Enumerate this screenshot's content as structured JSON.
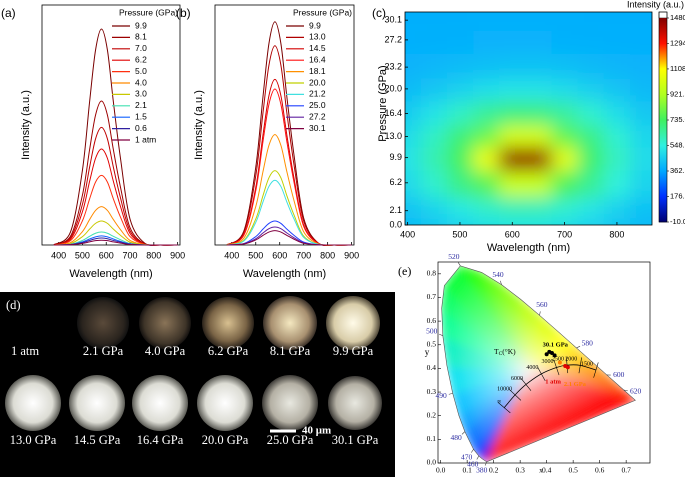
{
  "chart_data": [
    {
      "type": "line",
      "label": "(a)",
      "xlabel": "Wavelength (nm)",
      "ylabel": "Intensity (a.u.)",
      "legend_title": "Pressure (GPa)",
      "x": [
        380,
        450,
        500,
        530,
        555,
        580,
        605,
        630,
        660,
        700,
        760,
        830,
        900
      ],
      "xlim": [
        330,
        910
      ],
      "xticks": [
        400,
        500,
        600,
        700,
        800,
        900
      ],
      "ylim": [
        0,
        100
      ],
      "series": [
        {
          "name": "9.9",
          "color": "#7a0000",
          "values": [
            0.1,
            5.5,
            31.2,
            59.6,
            81.2,
            90,
            81.2,
            59.6,
            36,
            10.8,
            0.9,
            0,
            0
          ]
        },
        {
          "name": "8.1",
          "color": "#9c0000",
          "values": [
            0.1,
            3.7,
            20.8,
            39.7,
            54.1,
            60,
            54.1,
            39.7,
            24,
            7.2,
            0.6,
            0,
            0
          ]
        },
        {
          "name": "7.0",
          "color": "#c00000",
          "values": [
            0.1,
            3,
            17,
            32.4,
            44.2,
            49,
            44.2,
            32.4,
            19.6,
            5.9,
            0.5,
            0,
            0
          ]
        },
        {
          "name": "6.2",
          "color": "#e00000",
          "values": [
            0.1,
            2.4,
            13.9,
            26.5,
            36.1,
            40,
            36.1,
            26.5,
            16,
            4.8,
            0.4,
            0,
            0
          ]
        },
        {
          "name": "5.0",
          "color": "#ff3010",
          "values": [
            0,
            1.8,
            10.1,
            19.2,
            26.2,
            29,
            26.2,
            19.2,
            11.6,
            3.5,
            0.3,
            0,
            0
          ]
        },
        {
          "name": "4.0",
          "color": "#ff8a00",
          "values": [
            0,
            1,
            5.6,
            10.6,
            14.4,
            16,
            14.4,
            10.6,
            6.4,
            1.9,
            0.2,
            0,
            0
          ]
        },
        {
          "name": "3.0",
          "color": "#c8c800",
          "values": [
            0,
            0.6,
            3.5,
            6.6,
            9,
            10,
            9,
            6.6,
            4,
            1.2,
            0.1,
            0,
            0
          ]
        },
        {
          "name": "2.1",
          "color": "#40e0b0",
          "values": [
            0,
            0.3,
            1.9,
            3.6,
            4.9,
            5.4,
            4.9,
            3.6,
            2.2,
            0.6,
            0.1,
            0,
            0
          ]
        },
        {
          "name": "1.5",
          "color": "#1060ff",
          "values": [
            0,
            0.2,
            1.3,
            2.5,
            3.4,
            3.8,
            3.4,
            2.5,
            1.5,
            0.5,
            0,
            0,
            0
          ]
        },
        {
          "name": "0.6",
          "color": "#3020a0",
          "values": [
            0,
            0.2,
            1,
            1.9,
            2.6,
            2.9,
            2.6,
            1.9,
            1.2,
            0.3,
            0,
            0,
            0
          ]
        },
        {
          "name": "1 atm",
          "color": "#800040",
          "values": [
            0,
            0.1,
            0.7,
            1.3,
            1.8,
            2,
            1.8,
            1.3,
            0.8,
            0.2,
            0,
            0,
            0
          ]
        }
      ]
    },
    {
      "type": "line",
      "label": "(b)",
      "xlabel": "Wavelength (nm)",
      "ylabel": "Intensity (a.u.)",
      "legend_title": "Pressure (GPa)",
      "x": [
        380,
        450,
        500,
        530,
        555,
        580,
        605,
        630,
        660,
        700,
        760,
        830,
        900
      ],
      "xlim": [
        330,
        910
      ],
      "xticks": [
        400,
        500,
        600,
        700,
        800,
        900
      ],
      "ylim": [
        0,
        100
      ],
      "series": [
        {
          "name": "9.9",
          "color": "#7a0000",
          "values": [
            0.1,
            5.7,
            32.3,
            61.6,
            83.9,
            93,
            83.9,
            61.6,
            37.2,
            11.2,
            0.9,
            0,
            0
          ]
        },
        {
          "name": "13.0",
          "color": "#b00000",
          "values": [
            0.1,
            5.1,
            28.8,
            54.9,
            74.9,
            83,
            74.9,
            54.9,
            33.2,
            10,
            0.8,
            0,
            0
          ]
        },
        {
          "name": "14.5",
          "color": "#d40000",
          "values": [
            0.1,
            4.2,
            23.9,
            45.7,
            62.2,
            69,
            62.2,
            45.7,
            27.6,
            8.3,
            0.7,
            0,
            0
          ]
        },
        {
          "name": "16.4",
          "color": "#ff1010",
          "values": [
            0.1,
            4,
            22.6,
            43,
            58.6,
            65,
            58.6,
            43,
            26,
            7.8,
            0.7,
            0,
            0
          ]
        },
        {
          "name": "18.1",
          "color": "#ff9000",
          "values": [
            0.1,
            2.8,
            16,
            30.5,
            41.5,
            46,
            41.5,
            30.5,
            18.4,
            5.5,
            0.5,
            0,
            0
          ]
        },
        {
          "name": "20.0",
          "color": "#c0d000",
          "values": [
            0,
            1.9,
            10.8,
            20.5,
            28,
            31,
            28,
            20.5,
            12.4,
            3.7,
            0.3,
            0,
            0
          ]
        },
        {
          "name": "21.2",
          "color": "#40e0e0",
          "values": [
            0,
            1.6,
            9.4,
            17.9,
            24.4,
            27,
            24.4,
            17.9,
            10.8,
            3.2,
            0.3,
            0,
            0
          ]
        },
        {
          "name": "25.0",
          "color": "#2040ff",
          "values": [
            0,
            0.6,
            3.5,
            6.6,
            9,
            10,
            9,
            6.6,
            4,
            1.2,
            0.1,
            0,
            0
          ]
        },
        {
          "name": "27.2",
          "color": "#6020a0",
          "values": [
            0,
            0.5,
            2.6,
            5,
            6.8,
            7.5,
            6.8,
            5,
            3,
            0.9,
            0.1,
            0,
            0
          ]
        },
        {
          "name": "30.1",
          "color": "#800040",
          "values": [
            0,
            0.4,
            2.1,
            4,
            5.4,
            6,
            5.4,
            4,
            2.4,
            0.7,
            0.1,
            0,
            0
          ]
        }
      ]
    },
    {
      "type": "heatmap",
      "label": "(c)",
      "xlabel": "Wavelength (nm)",
      "ylabel": "Pressure (GPa)",
      "colorbar_title": "Intensity (a.u.)",
      "x": [
        400,
        450,
        500,
        550,
        600,
        650,
        700,
        750,
        800,
        850
      ],
      "y": [
        0,
        2.1,
        6.2,
        9.9,
        13.0,
        16.4,
        20.0,
        23.2,
        27.2,
        30.1
      ],
      "z": [
        [
          414,
          440,
          472,
          501,
          518,
          516,
          496,
          465,
          434,
          409
        ],
        [
          436,
          480,
          534,
          583,
          612,
          609,
          575,
          523,
          470,
          429
        ],
        [
          490,
          575,
          680,
          777,
          983,
          977,
          760,
          659,
          555,
          476
        ],
        [
          514,
          618,
          746,
          1064,
          1453,
          1445,
          1044,
          720,
          594,
          497
        ],
        [
          498,
          589,
          702,
          806,
          1017,
          1010,
          788,
          679,
          568,
          483
        ],
        [
          456,
          515,
          587,
          654,
          693,
          688,
          643,
          572,
          501,
          446
        ],
        [
          414,
          440,
          472,
          501,
          518,
          516,
          496,
          465,
          434,
          409
        ],
        [
          392,
          401,
          413,
          423,
          429,
          429,
          421,
          410,
          399,
          390
        ],
        [
          382,
          384,
          386,
          388,
          389,
          389,
          387,
          385,
          383,
          382
        ],
        [
          380,
          381,
          381,
          382,
          382,
          382,
          382,
          381,
          381,
          380
        ]
      ],
      "xlim": [
        395,
        867
      ],
      "xticks": [
        400,
        500,
        600,
        700,
        800
      ],
      "ylim": [
        0,
        31.3
      ],
      "yticks": [
        {
          "value": 0,
          "label": "0.0"
        },
        2.1,
        6.2,
        9.9,
        {
          "value": 13,
          "label": "13.0"
        },
        16.4,
        {
          "value": 20,
          "label": "20.0"
        },
        23.2,
        27.2,
        30.1
      ],
      "clim": [
        -10,
        1480
      ],
      "cticks": [
        {
          "value": -10,
          "label": "-10.00"
        },
        176.3,
        362.5,
        548.8,
        {
          "value": 735,
          "label": "735.0"
        },
        921.3,
        1108,
        1294,
        1480
      ],
      "colorscale": [
        "#000070",
        "#0030ff",
        "#00a8ff",
        "#30f0e0",
        "#40f060",
        "#b0ff20",
        "#ffff00",
        "#ff1000",
        "#800000"
      ]
    },
    {
      "type": "chromaticity",
      "label": "(e)",
      "xlabel": "x",
      "ylabel": "y",
      "tc_label": [
        "T",
        "C",
        "(°K)"
      ],
      "xlim": [
        -0.01,
        0.79
      ],
      "xticks": [
        {
          "value": 0,
          "label": "0.0"
        },
        0.1,
        0.2,
        0.3,
        0.4,
        0.5,
        0.6,
        0.7
      ],
      "ylim": [
        0,
        0.85
      ],
      "yticks": [
        {
          "value": 0,
          "label": "0.0"
        },
        0.1,
        0.2,
        0.3,
        0.4,
        0.5,
        0.6,
        0.7,
        0.8
      ],
      "spectral_locus": {
        "labels": [
          "380",
          null,
          "460",
          "470",
          "480",
          null,
          "490",
          null,
          "500",
          null,
          null,
          "520",
          null,
          "540",
          null,
          "560",
          null,
          "580",
          null,
          "600",
          "620",
          null
        ],
        "x": [
          0.1741,
          0.1566,
          0.144,
          0.1241,
          0.0913,
          0.0687,
          0.0454,
          0.0235,
          0.0082,
          0.0039,
          0.0139,
          0.0743,
          0.1547,
          0.2296,
          0.3016,
          0.3731,
          0.4441,
          0.5125,
          0.5752,
          0.627,
          0.6915,
          0.7347
        ],
        "y": [
          0.005,
          0.0177,
          0.0297,
          0.0578,
          0.1327,
          0.2007,
          0.295,
          0.4127,
          0.5384,
          0.6548,
          0.7502,
          0.8338,
          0.8059,
          0.7543,
          0.6923,
          0.6245,
          0.5547,
          0.4866,
          0.4242,
          0.3725,
          0.3083,
          0.2653
        ],
        "colors": [
          "#6000c0",
          "#3000ff",
          "#1040ff",
          "#0070ff",
          "#00a0ff",
          "#00c0ff",
          "#00e0f0",
          "#00f0c0",
          "#00ff90",
          "#00ff60",
          "#00ff30",
          "#20ff00",
          "#60ff00",
          "#90ff00",
          "#c0ff00",
          "#e0ff00",
          "#ffff00",
          "#ffd000",
          "#ffa000",
          "#ff7000",
          "#ff3000",
          "#ff0000"
        ]
      },
      "planckian": {
        "labels": [
          "∞",
          "10000",
          "6000",
          "4000",
          "3000",
          "2500",
          "2000",
          "1500"
        ],
        "x": [
          0.24,
          0.281,
          0.322,
          0.38,
          0.437,
          0.477,
          0.527,
          0.586
        ],
        "y": [
          0.234,
          0.288,
          0.332,
          0.377,
          0.404,
          0.414,
          0.413,
          0.393
        ]
      },
      "points": [
        {
          "name": "30.1 GPa",
          "color": "#000000",
          "x": [
            0.4,
            0.41,
            0.42,
            0.43
          ],
          "y": [
            0.46,
            0.47,
            0.465,
            0.455
          ]
        },
        {
          "name": "1 atm",
          "color": "#e00000",
          "x": [
            0.47,
            0.48
          ],
          "y": [
            0.41,
            0.405
          ]
        },
        {
          "name": "2.1 GPa",
          "color": "#ff8000",
          "x": [
            0.45
          ],
          "y": [
            0.425
          ]
        }
      ]
    }
  ],
  "photos": {
    "label": "(d)",
    "captions": [
      "1 atm",
      "2.1 GPa",
      "4.0 GPa",
      "6.2 GPa",
      "8.1 GPa",
      "9.9 GPa",
      "13.0 GPa",
      "14.5 GPa",
      "16.4 GPa",
      "20.0 GPa",
      "25.0 GPa",
      "30.1 GPa"
    ],
    "scale_bar": "40 μm"
  }
}
